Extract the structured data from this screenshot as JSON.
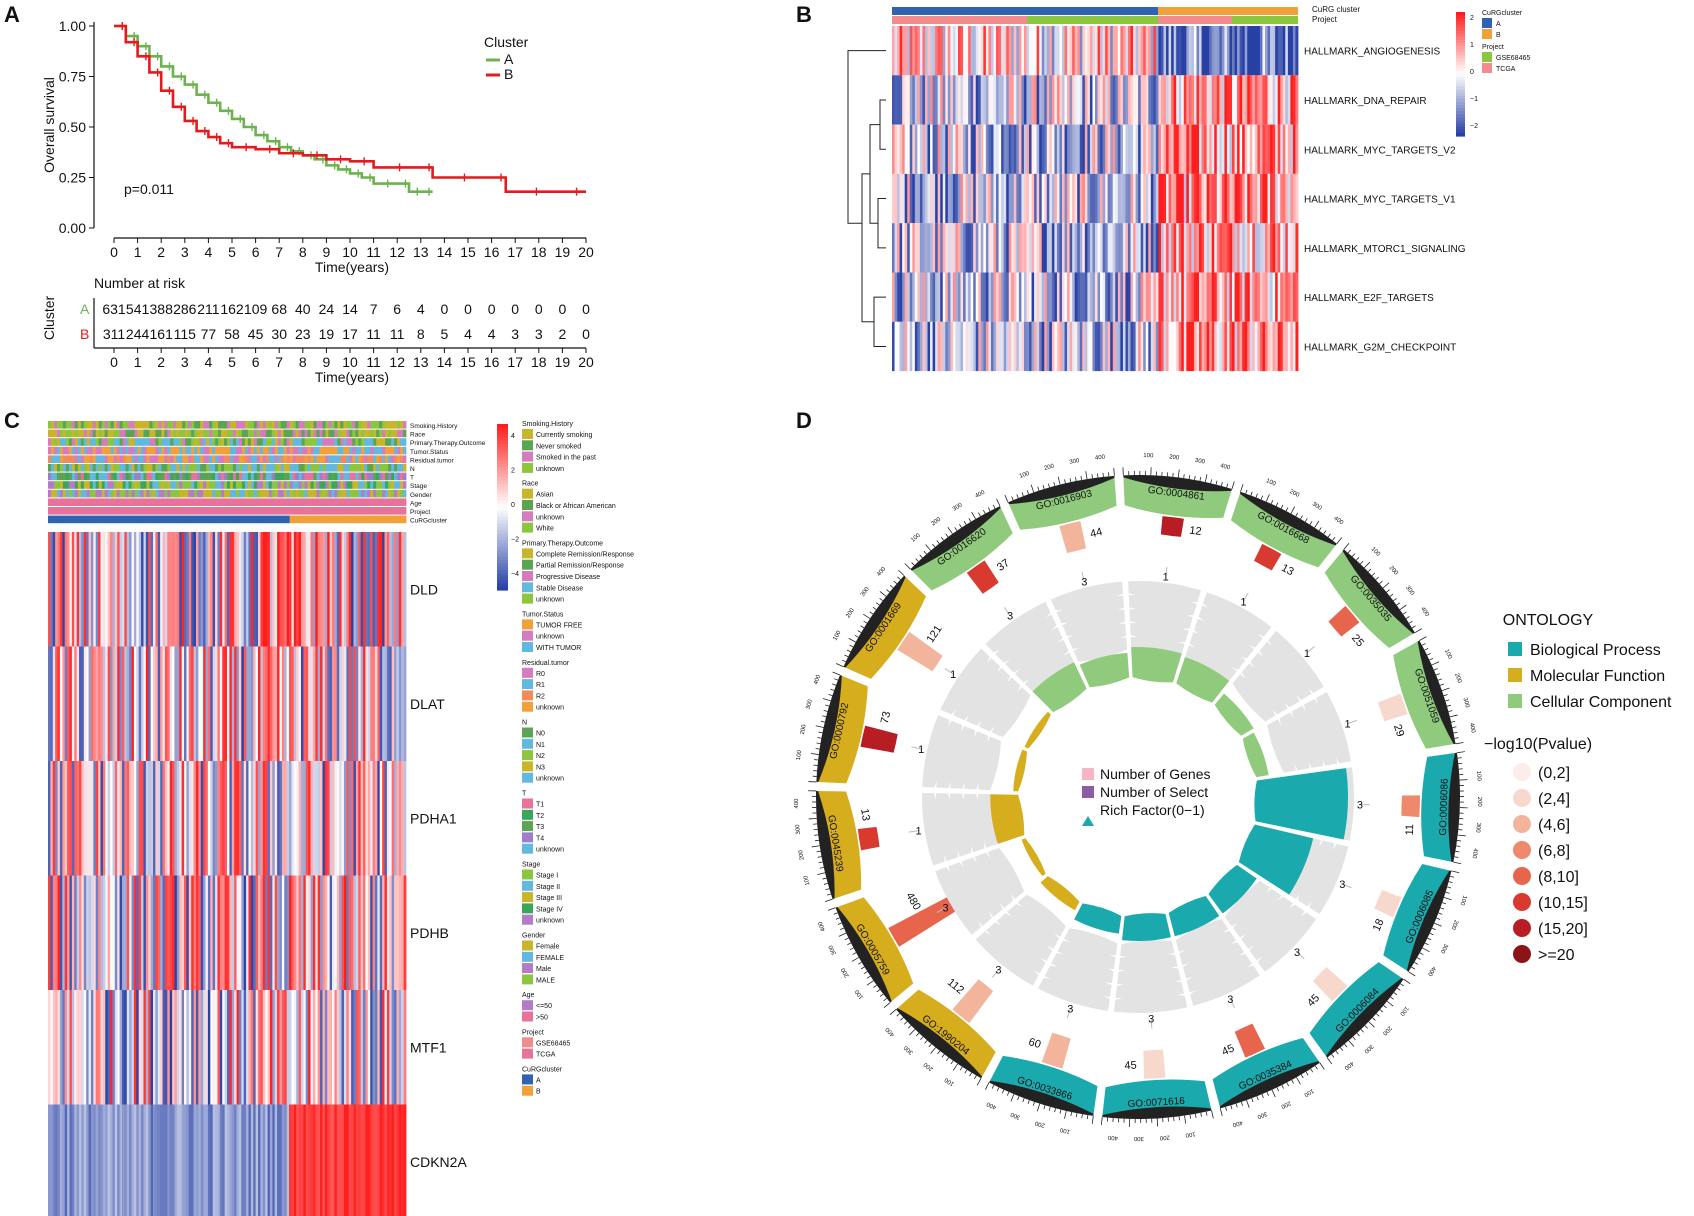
{
  "panels": {
    "a": "A",
    "b": "B",
    "c": "C",
    "d": "D"
  },
  "chart_data": [
    {
      "type": "line",
      "panel": "A",
      "title": "",
      "ylabel": "Overall survival",
      "xlabel": "Time(years)",
      "ylim": [
        0,
        1
      ],
      "xlim": [
        0,
        20
      ],
      "yticks": [
        "0.00",
        "0.25",
        "0.50",
        "0.75",
        "1.00"
      ],
      "xticks": [
        "0",
        "1",
        "2",
        "3",
        "4",
        "5",
        "6",
        "7",
        "8",
        "9",
        "10",
        "11",
        "12",
        "13",
        "14",
        "15",
        "16",
        "17",
        "18",
        "19",
        "20"
      ],
      "legend_title": "Cluster",
      "pvalue": "p=0.011",
      "series": [
        {
          "name": "A",
          "color": "#6cb34f",
          "x": [
            0,
            0.5,
            1,
            1.5,
            2,
            2.5,
            3,
            3.5,
            4,
            4.5,
            5,
            5.5,
            6,
            6.5,
            7,
            7.5,
            8,
            8.5,
            9,
            9.5,
            10,
            10.5,
            11,
            12,
            12.5,
            13,
            13.5
          ],
          "y": [
            1.0,
            0.95,
            0.9,
            0.85,
            0.8,
            0.75,
            0.71,
            0.66,
            0.62,
            0.58,
            0.54,
            0.5,
            0.46,
            0.43,
            0.4,
            0.38,
            0.36,
            0.34,
            0.31,
            0.29,
            0.27,
            0.25,
            0.22,
            0.22,
            0.18,
            0.18,
            0.18
          ]
        },
        {
          "name": "B",
          "color": "#e41a1c",
          "x": [
            0,
            0.5,
            1,
            1.5,
            2,
            2.5,
            3,
            3.5,
            4,
            4.5,
            5,
            6,
            7,
            8,
            9,
            10,
            11,
            13,
            13.5,
            16,
            16.6,
            19,
            20
          ],
          "y": [
            1.0,
            0.92,
            0.85,
            0.77,
            0.68,
            0.6,
            0.53,
            0.48,
            0.45,
            0.42,
            0.4,
            0.39,
            0.37,
            0.36,
            0.34,
            0.33,
            0.3,
            0.3,
            0.25,
            0.25,
            0.18,
            0.18,
            0.18
          ]
        }
      ],
      "risk_table": {
        "title": "Number at risk",
        "ylabel": "Cluster",
        "xlabel": "Time(years)",
        "rows": [
          {
            "name": "A",
            "values": [
              "631",
              "541",
              "388",
              "286",
              "211",
              "162",
              "109",
              "68",
              "40",
              "24",
              "14",
              "7",
              "6",
              "4",
              "0",
              "0",
              "0",
              "0",
              "0",
              "0",
              "0"
            ]
          },
          {
            "name": "B",
            "values": [
              "311",
              "244",
              "161",
              "115",
              "77",
              "58",
              "45",
              "30",
              "23",
              "19",
              "17",
              "11",
              "11",
              "8",
              "5",
              "4",
              "4",
              "3",
              "3",
              "2",
              "0"
            ]
          }
        ]
      }
    },
    {
      "type": "heatmap",
      "panel": "B",
      "rows": [
        "HALLMARK_ANGIOGENESIS",
        "HALLMARK_DNA_REPAIR",
        "HALLMARK_MYC_TARGETS_V2",
        "HALLMARK_MYC_TARGETS_V1",
        "HALLMARK_MTORC1_SIGNALING",
        "HALLMARK_E2F_TARGETS",
        "HALLMARK_G2M_CHECKPOINT"
      ],
      "annotations": [
        "CuRG cluster",
        "Project"
      ],
      "colorbar": {
        "ticks": [
          "2",
          "1",
          "0",
          "−1",
          "−2"
        ]
      },
      "legend": [
        {
          "title": "CuRGcluster",
          "items": [
            {
              "label": "A",
              "color": "#2f63b0"
            },
            {
              "label": "B",
              "color": "#f2a03a"
            }
          ]
        },
        {
          "title": "Project",
          "items": [
            {
              "label": "GSE68465",
              "color": "#8cc63f"
            },
            {
              "label": "TCGA",
              "color": "#f28b8b"
            }
          ]
        }
      ]
    },
    {
      "type": "heatmap",
      "panel": "C",
      "rows": [
        "DLD",
        "DLAT",
        "PDHA1",
        "PDHB",
        "MTF1",
        "CDKN2A"
      ],
      "annotations": [
        "Smoking.History",
        "Race",
        "Primary.Therapy.Outcome",
        "Tumor.Status",
        "Residual.tumor",
        "N",
        "T",
        "Stage",
        "Gender",
        "Age",
        "Project",
        "CuRGcluster"
      ],
      "colorbar": {
        "ticks": [
          "4",
          "2",
          "0",
          "−2",
          "−4"
        ]
      },
      "legend": [
        {
          "title": "Smoking.History",
          "items": [
            {
              "label": "Currently smoking",
              "color": "#c9b52a"
            },
            {
              "label": "Never smoked",
              "color": "#5aa454"
            },
            {
              "label": "Smoked in the past",
              "color": "#d67bc0"
            },
            {
              "label": "unknown",
              "color": "#8cc63f"
            }
          ]
        },
        {
          "title": "Race",
          "items": [
            {
              "label": "Asian",
              "color": "#c9b52a"
            },
            {
              "label": "Black or African American",
              "color": "#5aa454"
            },
            {
              "label": "unknown",
              "color": "#d67bc0"
            },
            {
              "label": "White",
              "color": "#8cc63f"
            }
          ]
        },
        {
          "title": "Primary.Therapy.Outcome",
          "items": [
            {
              "label": "Complete Remission/Response",
              "color": "#c9b52a"
            },
            {
              "label": "Partial Remission/Response",
              "color": "#5aa454"
            },
            {
              "label": "Progressive Disease",
              "color": "#d67bc0"
            },
            {
              "label": "Stable Disease",
              "color": "#63b8e0"
            },
            {
              "label": "unknown",
              "color": "#8cc63f"
            }
          ]
        },
        {
          "title": "Tumor.Status",
          "items": [
            {
              "label": "TUMOR FREE",
              "color": "#f2a03a"
            },
            {
              "label": "unknown",
              "color": "#d67bc0"
            },
            {
              "label": "WITH TUMOR",
              "color": "#63b8e0"
            }
          ]
        },
        {
          "title": "Residual.tumor",
          "items": [
            {
              "label": "R0",
              "color": "#d67bc0"
            },
            {
              "label": "R1",
              "color": "#63b8e0"
            },
            {
              "label": "R2",
              "color": "#f28b5b"
            },
            {
              "label": "unknown",
              "color": "#f2a03a"
            }
          ]
        },
        {
          "title": "N",
          "items": [
            {
              "label": "N0",
              "color": "#5aa454"
            },
            {
              "label": "N1",
              "color": "#63b8e0"
            },
            {
              "label": "N2",
              "color": "#8cc63f"
            },
            {
              "label": "N3",
              "color": "#c9b52a"
            },
            {
              "label": "unknown",
              "color": "#63b8e0"
            }
          ]
        },
        {
          "title": "T",
          "items": [
            {
              "label": "T1",
              "color": "#e8739a"
            },
            {
              "label": "T2",
              "color": "#3aa65a"
            },
            {
              "label": "T3",
              "color": "#5aa454"
            },
            {
              "label": "T4",
              "color": "#9b7fc8"
            },
            {
              "label": "unknown",
              "color": "#63b8e0"
            }
          ]
        },
        {
          "title": "Stage",
          "items": [
            {
              "label": "Stage I",
              "color": "#8cc63f"
            },
            {
              "label": "Stage II",
              "color": "#63b8e0"
            },
            {
              "label": "Stage III",
              "color": "#c9b52a"
            },
            {
              "label": "Stage IV",
              "color": "#3aa65a"
            },
            {
              "label": "unknown",
              "color": "#b57bc8"
            }
          ]
        },
        {
          "title": "Gender",
          "items": [
            {
              "label": "Female",
              "color": "#c9b52a"
            },
            {
              "label": "FEMALE",
              "color": "#63b8e0"
            },
            {
              "label": "Male",
              "color": "#b57bc8"
            },
            {
              "label": "MALE",
              "color": "#8cc63f"
            }
          ]
        },
        {
          "title": "Age",
          "items": [
            {
              "label": "<=50",
              "color": "#b57bc8"
            },
            {
              "label": ">50",
              "color": "#e8739a"
            }
          ]
        },
        {
          "title": "Project",
          "items": [
            {
              "label": "GSE68465",
              "color": "#f28b8b"
            },
            {
              "label": "TCGA",
              "color": "#e8739a"
            }
          ]
        },
        {
          "title": "CuRGcluster",
          "items": [
            {
              "label": "A",
              "color": "#2f63b0"
            },
            {
              "label": "B",
              "color": "#f2a03a"
            }
          ]
        }
      ]
    },
    {
      "type": "circular",
      "panel": "D",
      "terms": [
        {
          "id": "GO:0016903",
          "category": "Cellular Component",
          "genes": 44,
          "select": 3
        },
        {
          "id": "GO:0004861",
          "category": "Cellular Component",
          "genes": 12,
          "select": 1
        },
        {
          "id": "GO:0016668",
          "category": "Cellular Component",
          "genes": 13,
          "select": 1
        },
        {
          "id": "GO:0035035",
          "category": "Cellular Component",
          "genes": 25,
          "select": 1
        },
        {
          "id": "GO:0051059",
          "category": "Cellular Component",
          "genes": 29,
          "select": 1
        },
        {
          "id": "GO:0006086",
          "category": "Biological Process",
          "genes": 11,
          "select": 3
        },
        {
          "id": "GO:0006085",
          "category": "Biological Process",
          "genes": 18,
          "select": 3
        },
        {
          "id": "GO:0006084",
          "category": "Biological Process",
          "genes": 45,
          "select": 3
        },
        {
          "id": "GO:0035384",
          "category": "Biological Process",
          "genes": 45,
          "select": 3
        },
        {
          "id": "GO:0071616",
          "category": "Biological Process",
          "genes": 45,
          "select": 3
        },
        {
          "id": "GO:0033866",
          "category": "Biological Process",
          "genes": 60,
          "select": 3
        },
        {
          "id": "GO:1990204",
          "category": "Molecular Function",
          "genes": 112,
          "select": 3
        },
        {
          "id": "GO:0005759",
          "category": "Molecular Function",
          "genes": 480,
          "select": 3
        },
        {
          "id": "GO:0045239",
          "category": "Molecular Function",
          "genes": 13,
          "select": 1
        },
        {
          "id": "GO:0000792",
          "category": "Molecular Function",
          "genes": 73,
          "select": 1
        },
        {
          "id": "GO:0001669",
          "category": "Molecular Function",
          "genes": 121,
          "select": 1
        },
        {
          "id": "GO:0016620",
          "category": "Cellular Component",
          "genes": 37,
          "select": 3
        }
      ],
      "center_legend": [
        "Number of Genes",
        "Number of Select",
        "Rich Factor(0−1)"
      ],
      "ontology_title": "ONTOLOGY",
      "ontology": [
        {
          "label": "Biological Process",
          "color": "#1aa9ac"
        },
        {
          "label": "Molecular Function",
          "color": "#d6ad1c"
        },
        {
          "label": "Cellular Component",
          "color": "#8fca7d"
        }
      ],
      "pvalue_title": "−log10(Pvalue)",
      "pvalue_bins": [
        {
          "label": "(0,2]",
          "color": "#fbeeea"
        },
        {
          "label": "(2,4]",
          "color": "#f7d8cc"
        },
        {
          "label": "(4,6]",
          "color": "#f2b49a"
        },
        {
          "label": "(6,8]",
          "color": "#ee8a6b"
        },
        {
          "label": "(8,10]",
          "color": "#e8654d"
        },
        {
          "label": "(10,15]",
          "color": "#d93a2f"
        },
        {
          "label": "(15,20]",
          "color": "#b81d23"
        },
        {
          "label": ">=20",
          "color": "#8c1417"
        }
      ],
      "scale_ticks": [
        "100",
        "200",
        "300",
        "400"
      ]
    }
  ]
}
